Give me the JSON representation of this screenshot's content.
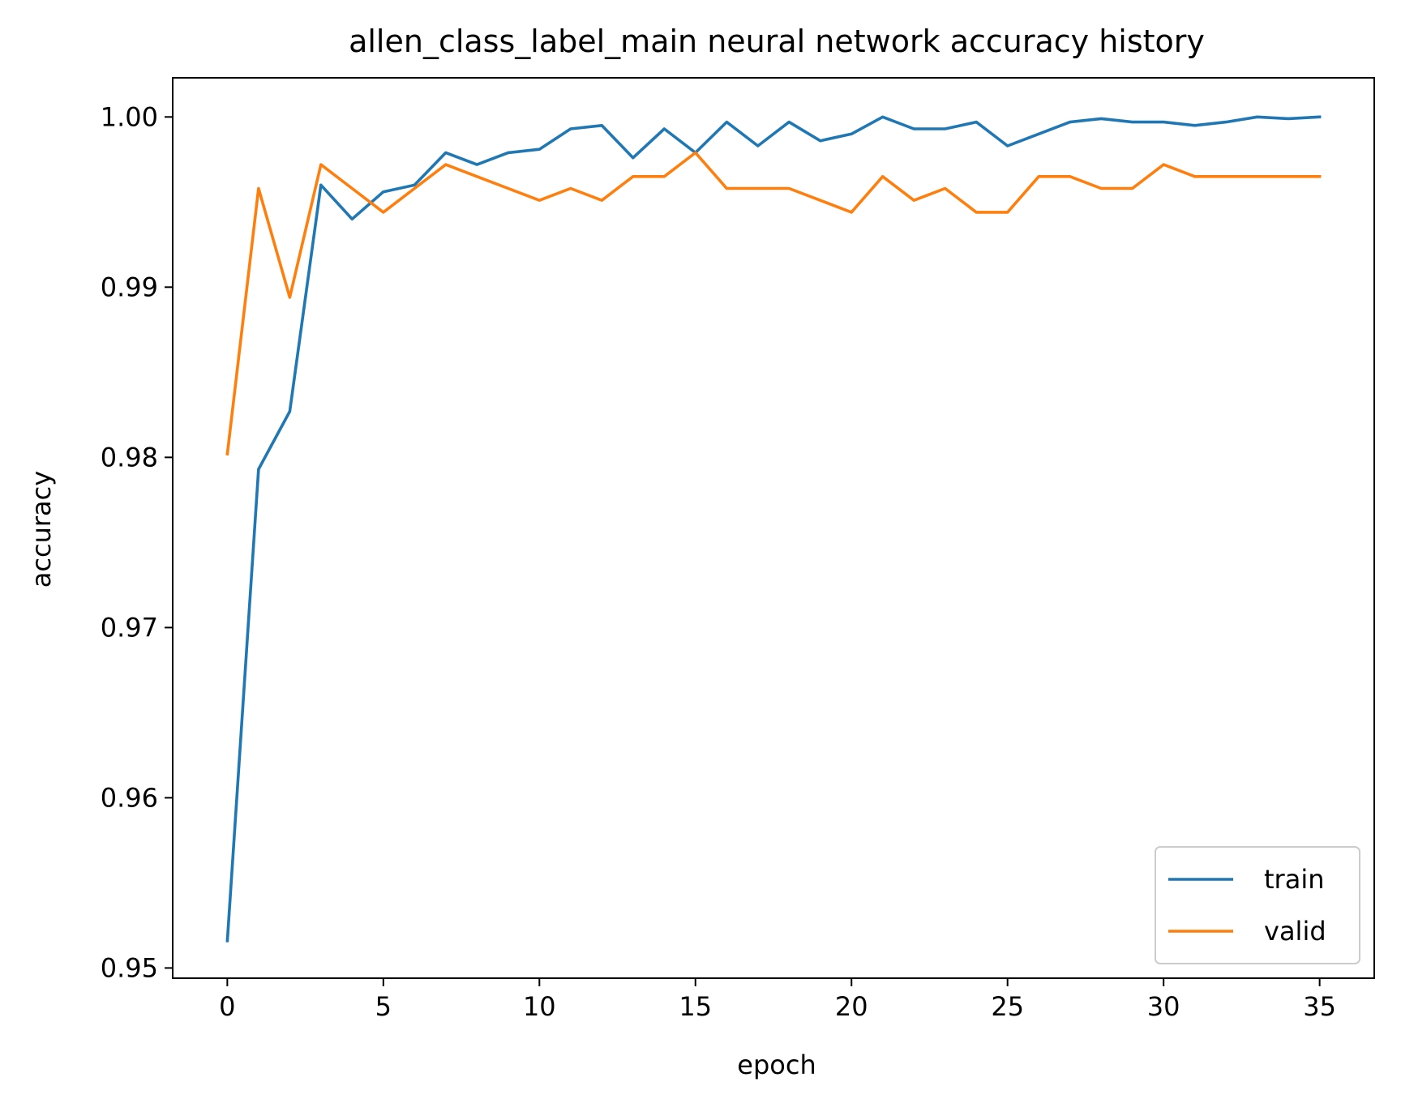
{
  "chart_data": {
    "type": "line",
    "title": "allen_class_label_main neural network accuracy history",
    "xlabel": "epoch",
    "ylabel": "accuracy",
    "xlim": [
      -1.75,
      36.75
    ],
    "ylim": [
      0.9494,
      1.0023
    ],
    "xticks": [
      0,
      5,
      10,
      15,
      20,
      25,
      30,
      35
    ],
    "xtick_labels": [
      "0",
      "5",
      "10",
      "15",
      "20",
      "25",
      "30",
      "35"
    ],
    "yticks": [
      0.95,
      0.96,
      0.97,
      0.98,
      0.99,
      1.0
    ],
    "ytick_labels": [
      "0.95",
      "0.96",
      "0.97",
      "0.98",
      "0.99",
      "1.00"
    ],
    "grid": false,
    "legend_position": "lower-right",
    "x": [
      0,
      1,
      2,
      3,
      4,
      5,
      6,
      7,
      8,
      9,
      10,
      11,
      12,
      13,
      14,
      15,
      16,
      17,
      18,
      19,
      20,
      21,
      22,
      23,
      24,
      25,
      26,
      27,
      28,
      29,
      30,
      31,
      32,
      33,
      34,
      35
    ],
    "series": [
      {
        "name": "train",
        "color": "#1f77b4",
        "values": [
          0.9516,
          0.9793,
          0.9827,
          0.996,
          0.994,
          0.9956,
          0.996,
          0.9979,
          0.9972,
          0.9979,
          0.9981,
          0.9993,
          0.9995,
          0.9976,
          0.9993,
          0.9979,
          0.9997,
          0.9983,
          0.9997,
          0.9986,
          0.999,
          1.0,
          0.9993,
          0.9993,
          0.9997,
          0.9983,
          0.999,
          0.9997,
          0.9999,
          0.9997,
          0.9997,
          0.9995,
          0.9997,
          1.0,
          0.9999,
          1.0
        ]
      },
      {
        "name": "valid",
        "color": "#ff7f0e",
        "values": [
          0.9802,
          0.9958,
          0.9894,
          0.9972,
          0.9958,
          0.9944,
          0.9958,
          0.9972,
          0.9965,
          0.9958,
          0.9951,
          0.9958,
          0.9951,
          0.9965,
          0.9965,
          0.9979,
          0.9958,
          0.9958,
          0.9958,
          0.9951,
          0.9944,
          0.9965,
          0.9951,
          0.9958,
          0.9944,
          0.9944,
          0.9965,
          0.9965,
          0.9958,
          0.9958,
          0.9972,
          0.9965,
          0.9965,
          0.9965,
          0.9965,
          0.9965
        ]
      }
    ]
  }
}
